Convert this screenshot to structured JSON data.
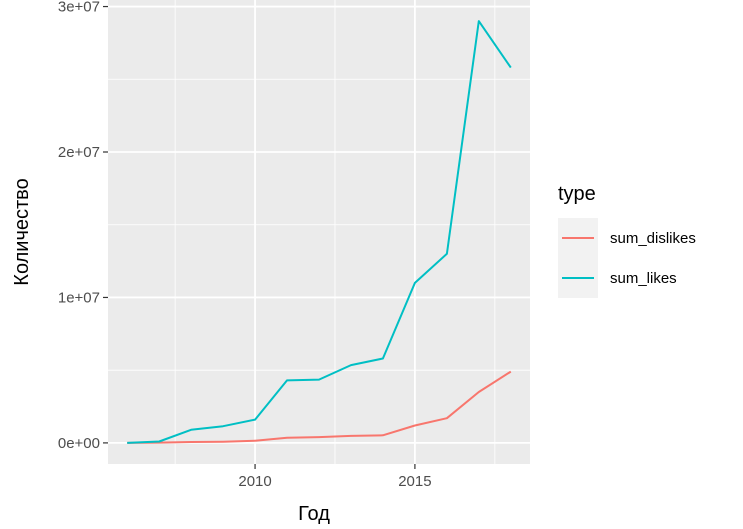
{
  "chart_data": {
    "type": "line",
    "title": "",
    "xlabel": "Год",
    "ylabel": "Количество",
    "xlim": [
      2005.4,
      2018.6
    ],
    "ylim": [
      -1450000,
      30450000
    ],
    "x_ticks": [
      2010,
      2015
    ],
    "x_tick_labels": [
      "2010",
      "2015"
    ],
    "y_ticks": [
      0,
      10000000,
      20000000,
      30000000
    ],
    "y_tick_labels": [
      "0e+00",
      "1e+07",
      "2e+07",
      "3e+07"
    ],
    "grid": true,
    "legend": {
      "title": "type",
      "position": "right"
    },
    "panel_background": "#ebebeb",
    "x": [
      2006,
      2007,
      2008,
      2009,
      2010,
      2011,
      2012,
      2013,
      2014,
      2015,
      2016,
      2017,
      2018
    ],
    "series": [
      {
        "name": "sum_dislikes",
        "color": "#f8766d",
        "values": [
          0,
          20000,
          60000,
          80000,
          150000,
          350000,
          400000,
          480000,
          520000,
          1200000,
          1700000,
          3500000,
          4900000
        ]
      },
      {
        "name": "sum_likes",
        "color": "#00bfc4",
        "values": [
          0,
          100000,
          900000,
          1150000,
          1600000,
          4300000,
          4350000,
          5350000,
          5800000,
          11000000,
          13000000,
          29000000,
          25800000
        ]
      }
    ]
  }
}
